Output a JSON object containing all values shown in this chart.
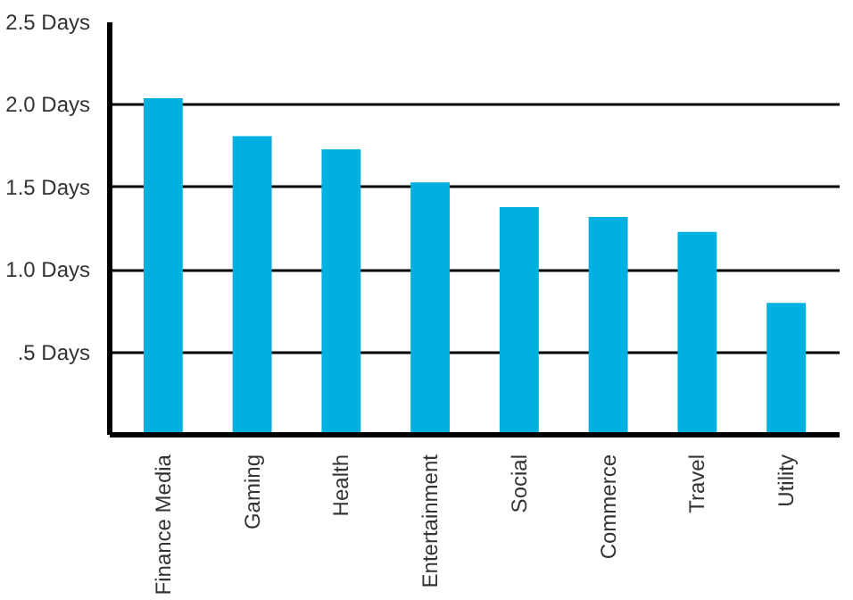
{
  "chart_data": {
    "type": "bar",
    "categories": [
      "Finance Media",
      "Gaming",
      "Health",
      "Entertainment",
      "Social",
      "Commerce",
      "Travel",
      "Utility"
    ],
    "values": [
      2.04,
      1.81,
      1.73,
      1.53,
      1.38,
      1.32,
      1.23,
      0.8
    ],
    "color": "#00b0e0",
    "ylim": [
      0,
      2.5
    ],
    "yticks": [
      {
        "value": 0.5,
        "label": ".5 Days"
      },
      {
        "value": 1.0,
        "label": "1.0 Days"
      },
      {
        "value": 1.5,
        "label": "1.5 Days"
      },
      {
        "value": 2.0,
        "label": "2.0 Days"
      },
      {
        "value": 2.5,
        "label": "2.5 Days"
      }
    ],
    "grid": "y"
  }
}
